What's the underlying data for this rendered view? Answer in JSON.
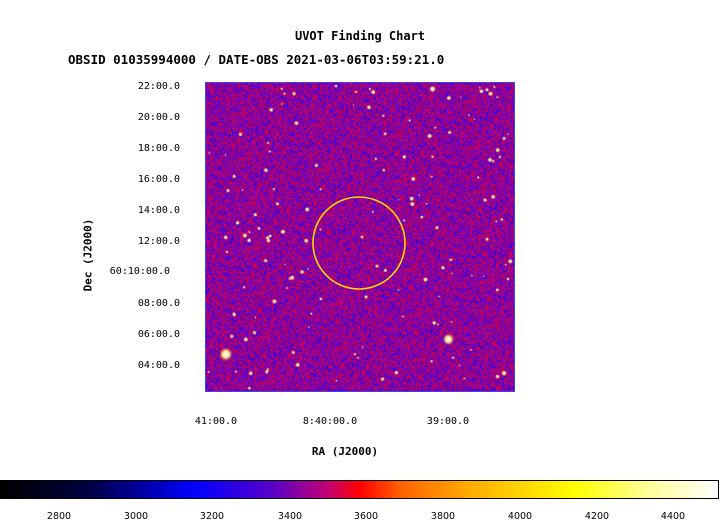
{
  "title": "UVOT Finding Chart",
  "subtitle": "OBSID 01035994000 / DATE-OBS 2021-03-06T03:59:21.0",
  "axes": {
    "ylabel": "Dec (J2000)",
    "xlabel": "RA (J2000)",
    "yticks": [
      "22:00.0",
      "20:00.0",
      "18:00.0",
      "16:00.0",
      "14:00.0",
      "12:00.0",
      "60:10:00.0",
      "08:00.0",
      "06:00.0",
      "04:00.0"
    ],
    "xticks": [
      "41:00.0",
      "8:40:00.0",
      "39:00.0"
    ]
  },
  "colorbar": {
    "ticks": [
      "2800",
      "3000",
      "3200",
      "3400",
      "3600",
      "3800",
      "4000",
      "4200",
      "4400"
    ],
    "colormap": [
      "#000000",
      "#0000ff",
      "#ff0000",
      "#ffff00",
      "#ffffff"
    ]
  },
  "region": {
    "shape": "circle",
    "color": "#ffd700"
  }
}
